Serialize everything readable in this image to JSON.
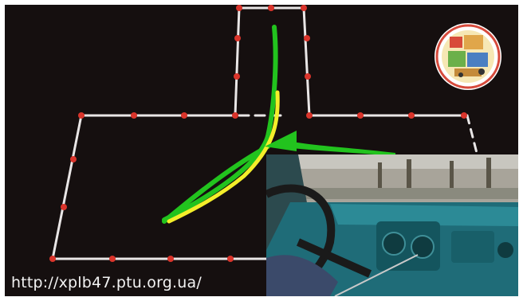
{
  "overlay": {
    "url": "http://xplb47.ptu.org.ua/"
  },
  "colors": {
    "background": "#150f0f",
    "course_line": "#e9e6e6",
    "cone": "#d9342b",
    "path_primary": "#22c31e",
    "path_secondary": "#f4ee2a",
    "interior": "#1b6d79"
  },
  "icons": {
    "logo": "round-emblem-icon",
    "arrow": "direction-arrow-icon"
  }
}
